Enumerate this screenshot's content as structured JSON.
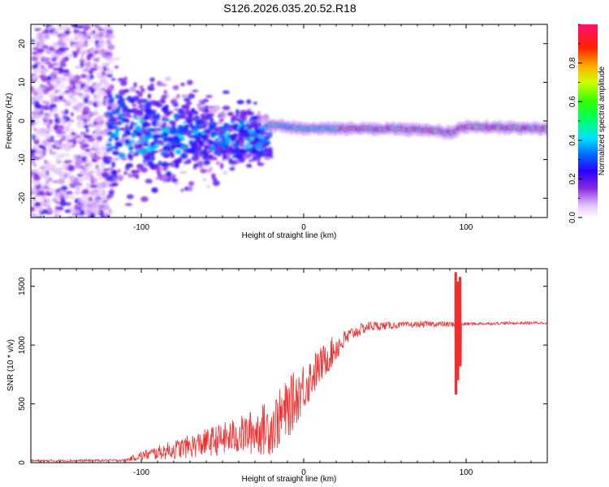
{
  "title": "S126.2026.035.20.52.R18",
  "chart_data": [
    {
      "type": "heatmap",
      "name": "spectrogram",
      "xlabel": "Height of straight line (km)",
      "ylabel": "Frequency (Hz)",
      "xlim": [
        -168,
        150
      ],
      "ylim": [
        -25,
        25
      ],
      "xticks": [
        -100,
        0,
        100
      ],
      "yticks": [
        -20,
        -10,
        0,
        10,
        20
      ],
      "colorbar": {
        "label": "Normalized spectral amplitude",
        "range": [
          0,
          1
        ],
        "ticks": [
          0.0,
          0.2,
          0.4,
          0.6,
          0.8
        ],
        "tick_labels": [
          "0.0",
          "0.2",
          "0.4",
          "0.6",
          "0.8"
        ]
      },
      "regions": [
        {
          "x_range": [
            -168,
            -120
          ],
          "description": "scattered noise",
          "max_amplitude": 0.3
        },
        {
          "x_range": [
            -120,
            -20
          ],
          "description": "diffuse signal near 0 to -10 Hz",
          "max_amplitude": 0.5
        },
        {
          "x_range": [
            -20,
            150
          ],
          "description": "coherent carrier line near -2 Hz",
          "max_amplitude": 0.95
        }
      ],
      "ridge": {
        "x": [
          -20,
          0,
          40,
          60,
          80,
          90,
          100,
          150
        ],
        "freq": [
          -1,
          -2,
          -2,
          -2,
          -2.5,
          -3,
          -1.5,
          -2
        ]
      }
    },
    {
      "type": "line",
      "name": "snr",
      "xlabel": "Height of straight line (km)",
      "ylabel": "SNR (10 * v/v)",
      "xlim": [
        -168,
        150
      ],
      "ylim": [
        0,
        1650
      ],
      "xticks": [
        -100,
        0,
        100
      ],
      "yticks": [
        0,
        500,
        1000,
        1500
      ],
      "color": "#f03030",
      "envelope": {
        "x": [
          -168,
          -110,
          -100,
          -80,
          -60,
          -40,
          -20,
          -10,
          0,
          10,
          20,
          30,
          40,
          60,
          80,
          90,
          100,
          120,
          150
        ],
        "mean": [
          15,
          20,
          60,
          110,
          170,
          230,
          300,
          450,
          650,
          820,
          980,
          1100,
          1160,
          1170,
          1180,
          1175,
          1180,
          1185,
          1190
        ],
        "spread": [
          10,
          10,
          40,
          80,
          120,
          160,
          240,
          260,
          220,
          160,
          120,
          60,
          45,
          25,
          25,
          25,
          15,
          12,
          12
        ]
      },
      "spike": {
        "x": [
          94,
          95,
          96
        ],
        "y_high": [
          1620,
          1540,
          1580
        ],
        "y_low": [
          580,
          700,
          820
        ]
      }
    }
  ]
}
